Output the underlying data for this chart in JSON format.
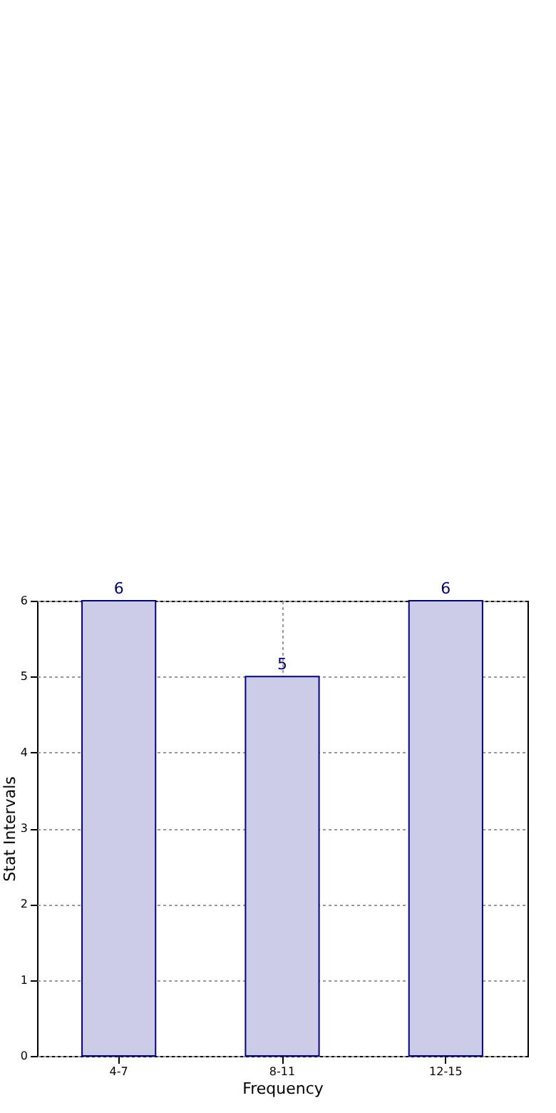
{
  "chart_data": {
    "type": "bar",
    "xlabel": "Frequency",
    "ylabel": "Stat Intervals",
    "categories": [
      "4-7",
      "8-11",
      "12-15"
    ],
    "values": [
      6,
      5,
      6
    ],
    "color": "#cccce6",
    "ylim": [
      0,
      6
    ],
    "yticks": [
      0,
      1,
      2,
      3,
      4,
      5,
      6
    ],
    "grid": true,
    "data_labels": true
  }
}
